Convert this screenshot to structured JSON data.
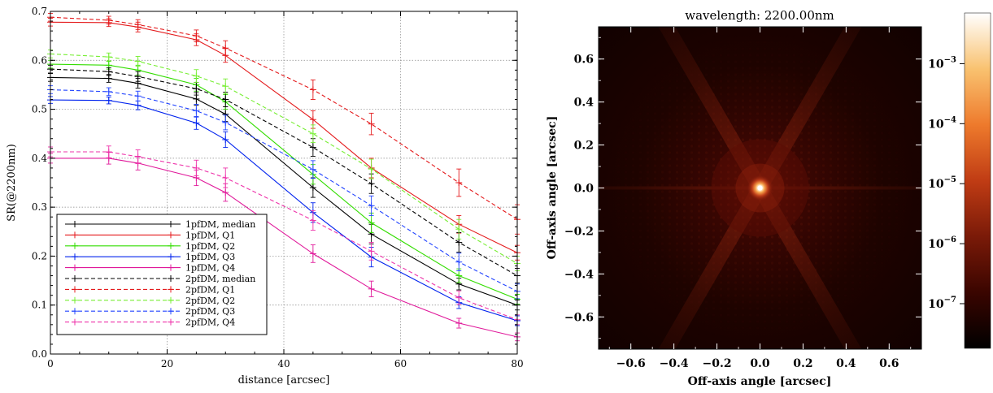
{
  "chart_data": [
    {
      "type": "line",
      "xlabel": "distance [arcsec]",
      "ylabel": "SR(@2200nm)",
      "xlim": [
        0,
        80
      ],
      "ylim": [
        0,
        0.7
      ],
      "xticks": [
        0,
        20,
        40,
        60,
        80
      ],
      "yticks": [
        0.0,
        0.1,
        0.2,
        0.3,
        0.4,
        0.5,
        0.6,
        0.7
      ],
      "grid": true,
      "legend_position": "bottom-left",
      "x": [
        0,
        10,
        15,
        25,
        30,
        45,
        55,
        70,
        80
      ],
      "series": [
        {
          "name": "1pfDM, median",
          "color": "#000000",
          "dash": "solid",
          "values": [
            0.565,
            0.563,
            0.553,
            0.521,
            0.49,
            0.34,
            0.245,
            0.143,
            0.1
          ],
          "errors": [
            0.008,
            0.008,
            0.01,
            0.013,
            0.015,
            0.02,
            0.02,
            0.012,
            0.01
          ]
        },
        {
          "name": "1pfDM, Q1",
          "color": "#e41a1c",
          "dash": "solid",
          "values": [
            0.678,
            0.677,
            0.668,
            0.642,
            0.61,
            0.479,
            0.38,
            0.265,
            0.207
          ],
          "errors": [
            0.008,
            0.008,
            0.01,
            0.012,
            0.014,
            0.018,
            0.02,
            0.018,
            0.015
          ]
        },
        {
          "name": "1pfDM, Q2",
          "color": "#33dd00",
          "dash": "solid",
          "values": [
            0.592,
            0.59,
            0.58,
            0.55,
            0.515,
            0.367,
            0.268,
            0.16,
            0.112
          ],
          "errors": [
            0.008,
            0.008,
            0.01,
            0.013,
            0.015,
            0.02,
            0.02,
            0.014,
            0.01
          ]
        },
        {
          "name": "1pfDM, Q3",
          "color": "#0022ee",
          "dash": "solid",
          "values": [
            0.519,
            0.518,
            0.508,
            0.472,
            0.438,
            0.289,
            0.198,
            0.105,
            0.068
          ],
          "errors": [
            0.007,
            0.007,
            0.009,
            0.013,
            0.016,
            0.02,
            0.02,
            0.012,
            0.01
          ]
        },
        {
          "name": "1pfDM, Q4",
          "color": "#e0189a",
          "dash": "solid",
          "values": [
            0.4,
            0.4,
            0.39,
            0.36,
            0.33,
            0.205,
            0.133,
            0.063,
            0.035
          ],
          "errors": [
            0.01,
            0.012,
            0.014,
            0.016,
            0.018,
            0.018,
            0.016,
            0.01,
            0.008
          ]
        },
        {
          "name": "2pfDM, median",
          "color": "#000000",
          "dash": "dashed",
          "values": [
            0.582,
            0.577,
            0.567,
            0.542,
            0.52,
            0.422,
            0.348,
            0.228,
            0.16
          ],
          "errors": [
            0.008,
            0.008,
            0.01,
            0.013,
            0.015,
            0.018,
            0.02,
            0.02,
            0.015
          ]
        },
        {
          "name": "2pfDM, Q1",
          "color": "#e41a1c",
          "dash": "dashed",
          "values": [
            0.688,
            0.682,
            0.673,
            0.65,
            0.625,
            0.54,
            0.47,
            0.35,
            0.275
          ],
          "errors": [
            0.008,
            0.008,
            0.01,
            0.012,
            0.015,
            0.02,
            0.022,
            0.028,
            0.03
          ]
        },
        {
          "name": "2pfDM, Q2",
          "color": "#77ee33",
          "dash": "dashed",
          "values": [
            0.613,
            0.607,
            0.598,
            0.568,
            0.547,
            0.45,
            0.378,
            0.255,
            0.185
          ],
          "errors": [
            0.008,
            0.008,
            0.01,
            0.013,
            0.015,
            0.018,
            0.02,
            0.02,
            0.015
          ]
        },
        {
          "name": "2pfDM, Q3",
          "color": "#2244ff",
          "dash": "dashed",
          "values": [
            0.54,
            0.536,
            0.527,
            0.497,
            0.473,
            0.377,
            0.303,
            0.188,
            0.128
          ],
          "errors": [
            0.008,
            0.008,
            0.01,
            0.013,
            0.015,
            0.018,
            0.02,
            0.018,
            0.015
          ]
        },
        {
          "name": "2pfDM, Q4",
          "color": "#ee33aa",
          "dash": "dashed",
          "values": [
            0.413,
            0.413,
            0.403,
            0.38,
            0.36,
            0.273,
            0.21,
            0.115,
            0.07
          ],
          "errors": [
            0.01,
            0.012,
            0.014,
            0.016,
            0.02,
            0.02,
            0.018,
            0.014,
            0.01
          ]
        }
      ]
    },
    {
      "type": "heatmap",
      "title": "wavelength: 2200.00nm",
      "xlabel": "Off-axis angle [arcsec]",
      "ylabel": "Off-axis angle [arcsec]",
      "xlim": [
        -0.75,
        0.75
      ],
      "ylim": [
        -0.75,
        0.75
      ],
      "xticks": [
        "−0.6",
        "−0.4",
        "−0.2",
        "0.0",
        "0.2",
        "0.4",
        "0.6"
      ],
      "yticks": [
        "−0.6",
        "−0.4",
        "−0.2",
        "0.0",
        "0.2",
        "0.4",
        "0.6"
      ],
      "xtick_values": [
        -0.6,
        -0.4,
        -0.2,
        0.0,
        0.2,
        0.4,
        0.6
      ],
      "ytick_values": [
        -0.6,
        -0.4,
        -0.2,
        0.0,
        0.2,
        0.4,
        0.6
      ],
      "colorbar": {
        "scale": "log",
        "range": [
          1.8e-08,
          0.007
        ],
        "tick_exponents": [
          -3,
          -4,
          -5,
          -6,
          -7
        ],
        "tick_base": "10",
        "colormap": [
          "#000000",
          "#3a0500",
          "#7a1a08",
          "#c03c14",
          "#ee7a2c",
          "#f9c270",
          "#ffffff"
        ]
      },
      "peak": {
        "x": 0.0,
        "y": 0.0
      }
    }
  ]
}
